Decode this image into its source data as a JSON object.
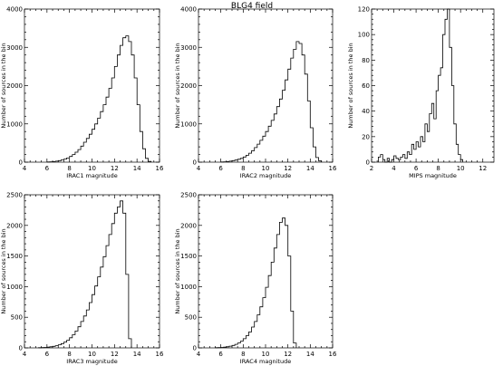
{
  "figure_title": "BLG4 field",
  "chart_data": [
    {
      "type": "histogram",
      "panel": "irac1",
      "xlabel": "IRAC1 magnitude",
      "ylabel": "Number of sources in the bin",
      "xlim": [
        4,
        16
      ],
      "ylim": [
        0,
        4000
      ],
      "xticks": [
        4,
        6,
        8,
        10,
        12,
        14,
        16
      ],
      "yticks": [
        0,
        1000,
        2000,
        3000,
        4000
      ],
      "bin_edges": [
        6.0,
        6.25,
        6.5,
        6.75,
        7.0,
        7.25,
        7.5,
        7.75,
        8.0,
        8.25,
        8.5,
        8.75,
        9.0,
        9.25,
        9.5,
        9.75,
        10.0,
        10.25,
        10.5,
        10.75,
        11.0,
        11.25,
        11.5,
        11.75,
        12.0,
        12.25,
        12.5,
        12.75,
        13.0,
        13.25,
        13.5,
        13.75,
        14.0,
        14.25,
        14.5,
        14.75,
        15.0,
        15.25
      ],
      "counts": [
        5,
        10,
        15,
        25,
        40,
        60,
        80,
        110,
        150,
        200,
        260,
        330,
        420,
        520,
        620,
        730,
        860,
        1000,
        1150,
        1320,
        1500,
        1700,
        1930,
        2200,
        2500,
        2800,
        3050,
        3250,
        3300,
        3150,
        2800,
        2200,
        1500,
        800,
        350,
        100,
        20
      ]
    },
    {
      "type": "histogram",
      "panel": "irac2",
      "xlabel": "IRAC2 magnitude",
      "ylabel": "Number of sources in the bin",
      "xlim": [
        4,
        16
      ],
      "ylim": [
        0,
        4000
      ],
      "xticks": [
        4,
        6,
        8,
        10,
        12,
        14,
        16
      ],
      "yticks": [
        0,
        1000,
        2000,
        3000,
        4000
      ],
      "bin_edges": [
        6.0,
        6.25,
        6.5,
        6.75,
        7.0,
        7.25,
        7.5,
        7.75,
        8.0,
        8.25,
        8.5,
        8.75,
        9.0,
        9.25,
        9.5,
        9.75,
        10.0,
        10.25,
        10.5,
        10.75,
        11.0,
        11.25,
        11.5,
        11.75,
        12.0,
        12.25,
        12.5,
        12.75,
        13.0,
        13.25,
        13.5,
        13.75,
        14.0,
        14.25,
        14.5,
        14.75,
        15.0
      ],
      "counts": [
        5,
        10,
        15,
        25,
        40,
        55,
        75,
        100,
        135,
        180,
        235,
        300,
        380,
        470,
        570,
        680,
        800,
        940,
        1090,
        1260,
        1450,
        1650,
        1880,
        2150,
        2430,
        2720,
        2950,
        3150,
        3100,
        2800,
        2300,
        1600,
        900,
        400,
        120,
        30
      ]
    },
    {
      "type": "histogram",
      "panel": "mips",
      "xlabel": "MIPS magnitude",
      "ylabel": "Number of sources in the bin",
      "xlim": [
        2,
        13
      ],
      "ylim": [
        0,
        120
      ],
      "xticks": [
        2,
        4,
        6,
        8,
        10,
        12
      ],
      "yticks": [
        0,
        20,
        40,
        60,
        80,
        100,
        120
      ],
      "bin_edges": [
        2.6,
        2.8,
        3.0,
        3.2,
        3.4,
        3.6,
        3.8,
        4.0,
        4.2,
        4.4,
        4.6,
        4.8,
        5.0,
        5.2,
        5.4,
        5.6,
        5.8,
        6.0,
        6.2,
        6.4,
        6.6,
        6.8,
        7.0,
        7.2,
        7.4,
        7.6,
        7.8,
        8.0,
        8.2,
        8.4,
        8.6,
        8.8,
        9.0,
        9.2,
        9.4,
        9.6,
        9.8,
        10.0,
        10.2
      ],
      "counts": [
        4,
        6,
        2,
        0,
        3,
        0,
        2,
        5,
        3,
        2,
        4,
        6,
        3,
        8,
        6,
        14,
        10,
        16,
        12,
        20,
        16,
        30,
        24,
        38,
        46,
        34,
        56,
        68,
        74,
        100,
        112,
        120,
        90,
        60,
        30,
        14,
        6,
        2
      ]
    },
    {
      "type": "histogram",
      "panel": "irac3",
      "xlabel": "IRAC3 magnitude",
      "ylabel": "Number of sources in the bin",
      "xlim": [
        4,
        16
      ],
      "ylim": [
        0,
        2500
      ],
      "xticks": [
        4,
        6,
        8,
        10,
        12,
        14,
        16
      ],
      "yticks": [
        0,
        500,
        1000,
        1500,
        2000,
        2500
      ],
      "bin_edges": [
        5.25,
        5.5,
        5.75,
        6.0,
        6.25,
        6.5,
        6.75,
        7.0,
        7.25,
        7.5,
        7.75,
        8.0,
        8.25,
        8.5,
        8.75,
        9.0,
        9.25,
        9.5,
        9.75,
        10.0,
        10.25,
        10.5,
        10.75,
        11.0,
        11.25,
        11.5,
        11.75,
        12.0,
        12.25,
        12.5,
        12.75,
        13.0,
        13.25,
        13.5
      ],
      "counts": [
        3,
        5,
        8,
        12,
        18,
        25,
        35,
        50,
        70,
        95,
        125,
        165,
        215,
        275,
        345,
        430,
        520,
        620,
        740,
        870,
        1010,
        1160,
        1320,
        1490,
        1670,
        1850,
        2030,
        2200,
        2300,
        2400,
        2200,
        1200,
        150
      ]
    },
    {
      "type": "histogram",
      "panel": "irac4",
      "xlabel": "IRAC4 magnitude",
      "ylabel": "Number of sources in the bin",
      "xlim": [
        4,
        16
      ],
      "ylim": [
        0,
        2500
      ],
      "xticks": [
        4,
        6,
        8,
        10,
        12,
        14,
        16
      ],
      "yticks": [
        0,
        500,
        1000,
        1500,
        2000,
        2500
      ],
      "bin_edges": [
        5.5,
        5.75,
        6.0,
        6.25,
        6.5,
        6.75,
        7.0,
        7.25,
        7.5,
        7.75,
        8.0,
        8.25,
        8.5,
        8.75,
        9.0,
        9.25,
        9.5,
        9.75,
        10.0,
        10.25,
        10.5,
        10.75,
        11.0,
        11.25,
        11.5,
        11.75,
        12.0,
        12.25,
        12.5,
        12.75
      ],
      "counts": [
        3,
        5,
        8,
        12,
        18,
        28,
        40,
        58,
        80,
        110,
        150,
        200,
        260,
        340,
        430,
        540,
        670,
        820,
        990,
        1180,
        1400,
        1630,
        1850,
        2050,
        2120,
        2000,
        1500,
        600,
        80
      ]
    }
  ]
}
